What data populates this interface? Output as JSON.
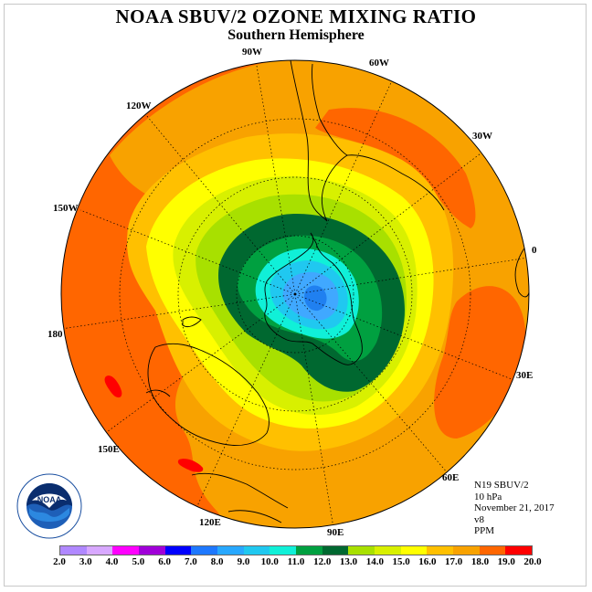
{
  "header": {
    "title": "NOAA SBUV/2 OZONE MIXING RATIO",
    "subtitle": "Southern Hemisphere"
  },
  "map": {
    "projection": "south-polar-stereographic",
    "longitude_labels": [
      "90W",
      "60W",
      "30W",
      "0",
      "30E",
      "60E",
      "90E",
      "120E",
      "150E",
      "180",
      "150W",
      "120W"
    ],
    "contour_colors": {
      "ocean_outer": "#ff6600",
      "ring_17": "#f8a200",
      "ring_16": "#ffc000",
      "ring_15": "#ffff00",
      "ring_14": "#d8f000",
      "ring_13": "#a8e000",
      "ring_12": "#006830",
      "ring_11": "#00a040",
      "ring_10": "#10f0d8",
      "ring_9": "#20c8f0",
      "ring_8": "#40a8ff",
      "min_7": "#2080f0",
      "hotspot_18": "#ff0000"
    }
  },
  "info": {
    "satellite": "N19 SBUV/2",
    "level": "10 hPa",
    "date": "November 21, 2017",
    "version": "v8",
    "units": "PPM"
  },
  "logo": {
    "name": "NOAA",
    "ring_text": "NATIONAL OCEANIC AND ATMOSPHERIC ADMINISTRATION · U.S. DEPARTMENT OF COMMERCE"
  },
  "colorbar": {
    "labels": [
      "2.0",
      "3.0",
      "4.0",
      "5.0",
      "6.0",
      "7.0",
      "8.0",
      "9.0",
      "10.0",
      "11.0",
      "12.0",
      "13.0",
      "14.0",
      "15.0",
      "16.0",
      "17.0",
      "18.0",
      "19.0",
      "20.0"
    ],
    "colors": [
      "#b088ff",
      "#d8a8ff",
      "#ff00ff",
      "#a000d8",
      "#0000ff",
      "#1e78ff",
      "#28a8ff",
      "#20c8f0",
      "#10f0d8",
      "#00a040",
      "#006830",
      "#a8e000",
      "#d8f000",
      "#ffff00",
      "#ffc000",
      "#f8a200",
      "#ff6600",
      "#ff0000",
      "#8b4a2b"
    ]
  }
}
